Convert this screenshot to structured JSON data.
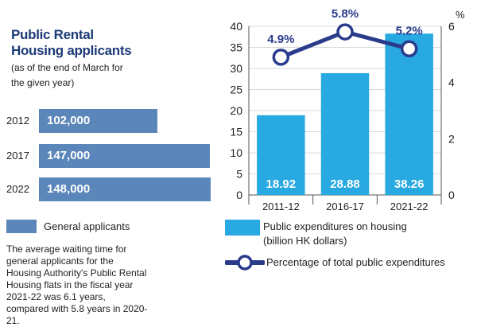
{
  "left_panel": {
    "title_line1": "Public Rental",
    "title_line2": "Housing applicants",
    "subtitle_line1": "(as of the end of March for",
    "subtitle_line2": "the given year)",
    "rows": [
      {
        "year": "2012",
        "label": "102,000",
        "value": 102000
      },
      {
        "year": "2017",
        "label": "147,000",
        "value": 147000
      },
      {
        "year": "2022",
        "label": "148,000",
        "value": 148000
      }
    ],
    "legend_label": "General applicants",
    "note": "The average waiting time for general applicants for the Housing Authority's Public Rental Housing flats in the fiscal year 2021-22 was 6.1 years, compared with 5.8 years in 2020-21."
  },
  "colors": {
    "hbar": "#5b86ba",
    "vbar": "#29a9e1",
    "line": "#2b3b8c",
    "title": "#1d3b78"
  },
  "chart_data": {
    "type": "bar",
    "categories": [
      "2011-12",
      "2016-17",
      "2021-22"
    ],
    "series": [
      {
        "name": "Public expenditures on housing",
        "values": [
          18.92,
          28.88,
          38.26
        ],
        "labels": [
          "18.92",
          "28.88",
          "38.26"
        ],
        "axis": "left"
      },
      {
        "name": "Percentage of total public expenditures",
        "values": [
          4.9,
          5.8,
          5.2
        ],
        "labels": [
          "4.9%",
          "5.8%",
          "5.2%"
        ],
        "axis": "right",
        "type": "line"
      }
    ],
    "left_ticks": [
      "0",
      "5",
      "10",
      "15",
      "20",
      "25",
      "30",
      "35",
      "40"
    ],
    "right_ticks": [
      "0",
      "2",
      "4",
      "6"
    ],
    "right_unit": "%",
    "ylim_left": [
      0,
      40
    ],
    "ylim_right": [
      0,
      6
    ],
    "grid": true,
    "legend_bar_line1": "Public expenditures on housing",
    "legend_bar_line2": "(billion HK dollars)",
    "legend_line": "Percentage of total public expenditures"
  }
}
